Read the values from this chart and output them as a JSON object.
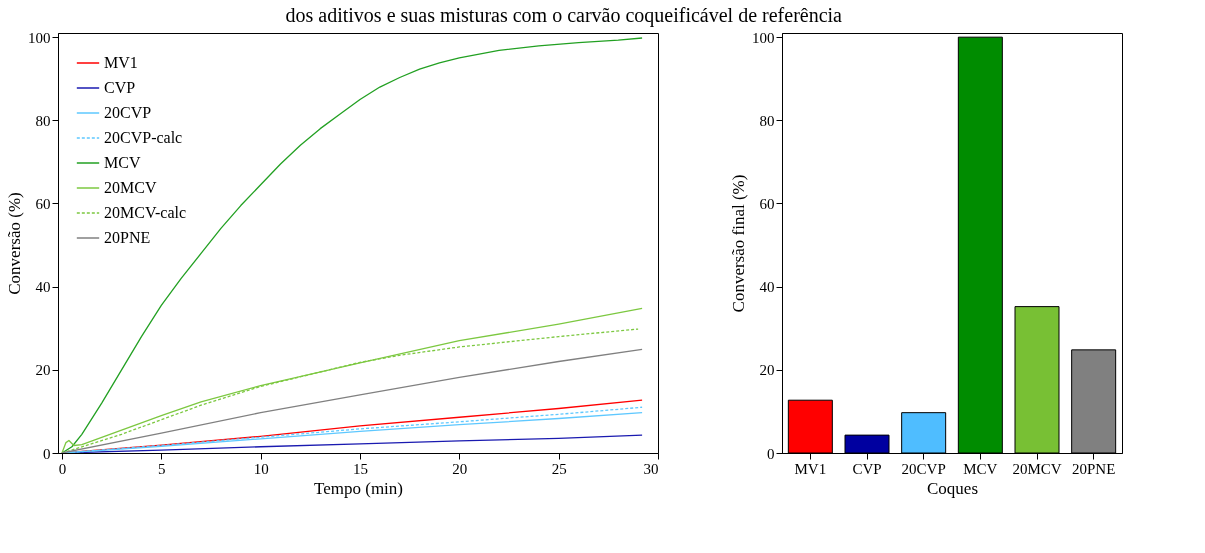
{
  "chart_data": [
    {
      "type": "line",
      "title": "dos aditivos e suas misturas com o carvão coqueificável de referência",
      "xlabel": "Tempo (min)",
      "ylabel": "Conversão (%)",
      "xlim": [
        -0.2,
        30
      ],
      "xticks": [
        0,
        5,
        10,
        15,
        20,
        25,
        30
      ],
      "ylim": [
        0,
        101
      ],
      "yticks": [
        0,
        20,
        40,
        60,
        80,
        100
      ],
      "grid": false,
      "legend": "top left",
      "marker": "none",
      "series": [
        {
          "name": "MV1",
          "color": "#ff0000",
          "line_style": "solid",
          "x": [
            0,
            5,
            10,
            15,
            20,
            25,
            29.2
          ],
          "values": [
            0,
            1.9,
            4,
            6.5,
            8.6,
            10.7,
            12.7
          ]
        },
        {
          "name": "CVP",
          "color": "#1a1ab0",
          "line_style": "solid",
          "x": [
            0,
            5,
            10,
            15,
            20,
            25,
            29.2
          ],
          "values": [
            0,
            0.7,
            1.5,
            2.2,
            2.9,
            3.5,
            4.3
          ]
        },
        {
          "name": "20CVP",
          "color": "#5ec8ff",
          "line_style": "solid",
          "x": [
            0,
            5,
            10,
            15,
            20,
            25,
            29.2
          ],
          "values": [
            0,
            1.6,
            3.4,
            5.2,
            6.8,
            8.3,
            9.7
          ]
        },
        {
          "name": "20CVP-calc",
          "color": "#5ec8ff",
          "line_style": "dashed",
          "x": [
            0,
            5,
            10,
            15,
            20,
            25,
            29.2
          ],
          "values": [
            0,
            1.8,
            3.8,
            5.8,
            7.5,
            9.3,
            11
          ]
        },
        {
          "name": "MCV",
          "color": "#22a022",
          "line_style": "solid",
          "x": [
            0,
            0.5,
            1,
            2,
            3,
            4,
            5,
            6,
            7,
            8,
            9,
            10,
            11,
            12,
            13,
            14,
            15,
            16,
            17,
            18,
            19,
            20,
            22,
            24,
            26,
            28,
            29.2
          ],
          "values": [
            0,
            1.5,
            4.5,
            12,
            20,
            28,
            35.5,
            42,
            48,
            54,
            59.5,
            64.5,
            69.5,
            74,
            78,
            81.5,
            85,
            88,
            90.3,
            92.3,
            93.8,
            95,
            96.8,
            97.9,
            98.7,
            99.3,
            99.8
          ]
        },
        {
          "name": "20MCV",
          "color": "#7cc840",
          "line_style": "solid",
          "x": [
            0,
            0.2,
            0.35,
            0.6,
            1,
            3,
            5,
            7,
            10,
            15,
            20,
            25,
            29.2
          ],
          "values": [
            0,
            2.5,
            3,
            1.8,
            2,
            5.5,
            9,
            12.3,
            16.2,
            21.7,
            27,
            31,
            34.8
          ]
        },
        {
          "name": "20MCV-calc",
          "color": "#7cc840",
          "line_style": "dashed",
          "x": [
            0,
            1,
            3,
            5,
            7,
            10,
            15,
            17,
            20,
            25,
            29
          ],
          "values": [
            0,
            1.5,
            4.5,
            8,
            11.5,
            16,
            21.8,
            23.5,
            25.5,
            28,
            29.8
          ]
        },
        {
          "name": "20PNE",
          "color": "#808080",
          "line_style": "solid",
          "x": [
            0,
            5,
            10,
            15,
            20,
            25,
            29.2
          ],
          "values": [
            0,
            4.8,
            9.7,
            14,
            18.2,
            22,
            24.9
          ]
        }
      ]
    },
    {
      "type": "bar",
      "xlabel": "Coques",
      "ylabel": "Conversão final (%)",
      "ylim": [
        0,
        101
      ],
      "yticks": [
        0,
        20,
        40,
        60,
        80,
        100
      ],
      "grid": false,
      "categories": [
        "MV1",
        "CVP",
        "20CVP",
        "MCV",
        "20MCV",
        "20PNE"
      ],
      "values": [
        12.7,
        4.3,
        9.7,
        100,
        35.2,
        24.8
      ],
      "colors": [
        "#ff0000",
        "#0000a0",
        "#4fbdff",
        "#008c00",
        "#78c034",
        "#808080"
      ]
    }
  ]
}
